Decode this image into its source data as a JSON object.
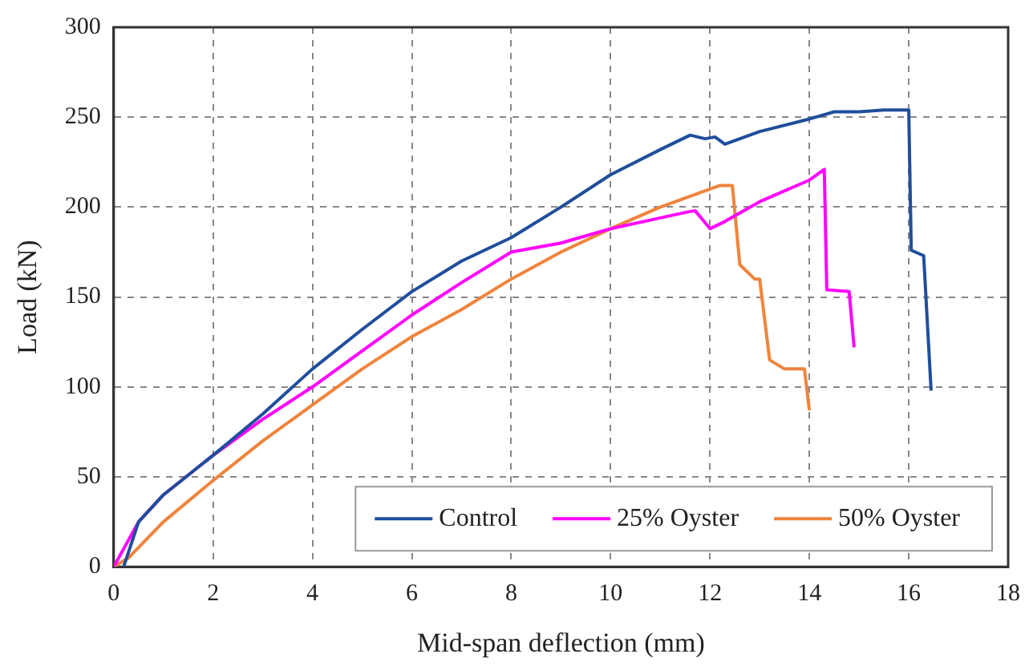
{
  "chart_data": {
    "type": "line",
    "xlabel": "Mid-span deflection (mm)",
    "ylabel": "Load (kN)",
    "xlim": [
      0,
      18
    ],
    "xticks": [
      0,
      2,
      4,
      6,
      8,
      10,
      12,
      14,
      16,
      18
    ],
    "ylim": [
      0,
      300
    ],
    "yticks": [
      0,
      50,
      100,
      150,
      200,
      250,
      300
    ],
    "grid": true,
    "legend": "bottom right",
    "marker": "none",
    "line_style": "solid",
    "series": [
      {
        "name": "Control",
        "color": "#1f4e9c",
        "x": [
          0.2,
          0.5,
          1,
          2,
          3,
          4,
          5,
          6,
          7,
          8,
          9,
          10,
          11,
          11.6,
          11.9,
          12.1,
          12.3,
          13,
          14,
          14.5,
          15,
          15.5,
          16,
          16.05,
          16.3,
          16.45
        ],
        "values": [
          0,
          25,
          40,
          62,
          85,
          110,
          132,
          153,
          170,
          183,
          200,
          218,
          232,
          240,
          238,
          239,
          235,
          242,
          249,
          253,
          253,
          254,
          254,
          176,
          173,
          98
        ]
      },
      {
        "name": "25% Oyster",
        "color": "#ff00ff",
        "x": [
          0,
          0.5,
          1,
          2,
          3,
          4,
          5,
          6,
          7,
          8,
          9,
          10,
          11,
          11.5,
          11.7,
          12,
          12.3,
          13,
          14,
          14.3,
          14.35,
          14.8,
          14.9
        ],
        "values": [
          0,
          25,
          40,
          62,
          82,
          100,
          120,
          140,
          158,
          175,
          180,
          188,
          194,
          197,
          198,
          188,
          192,
          203,
          215,
          221,
          154,
          153,
          122
        ]
      },
      {
        "name": "50% Oyster",
        "color": "#f0843c",
        "x": [
          0,
          0.3,
          1,
          2,
          3,
          4,
          5,
          6,
          7,
          8,
          9,
          10,
          11,
          11.8,
          12.2,
          12.45,
          12.6,
          12.9,
          13.0,
          13.2,
          13.5,
          13.9,
          14.0
        ],
        "values": [
          0,
          5,
          25,
          48,
          70,
          90,
          110,
          128,
          143,
          160,
          175,
          188,
          200,
          208,
          212,
          212,
          168,
          160,
          160,
          115,
          110,
          110,
          87
        ]
      }
    ]
  }
}
